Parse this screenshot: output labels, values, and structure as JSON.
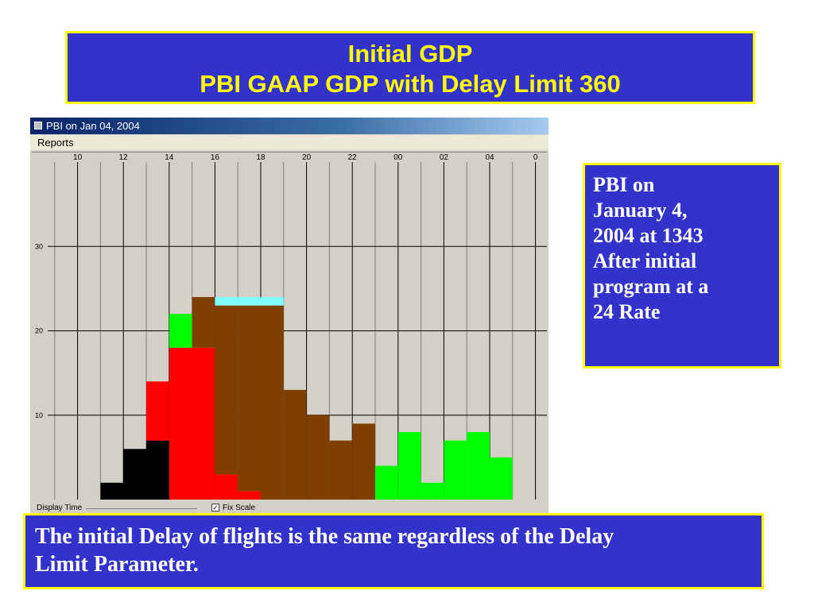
{
  "title": {
    "line1": "Initial GDP",
    "line2": "PBI GAAP GDP with Delay Limit 360"
  },
  "window": {
    "title": "PBI on Jan 04, 2004",
    "menu": "Reports",
    "display_time_label": "Display Time",
    "fix_scale_label": "Fix Scale",
    "fix_scale_checked": true
  },
  "side_note": {
    "lines": [
      "PBI on",
      "January 4,",
      "2004 at 1343",
      "After initial",
      "program at a",
      "24 Rate"
    ]
  },
  "bottom_note": {
    "lines": [
      "The initial Delay of flights is the same regardless of the Delay",
      "Limit Parameter."
    ]
  },
  "chart_data": {
    "type": "bar",
    "stacked": true,
    "x_tick_labels": [
      "10",
      "12",
      "14",
      "16",
      "18",
      "20",
      "22",
      "00",
      "02",
      "04",
      "0"
    ],
    "y_tick_labels": [
      "10",
      "20",
      "30"
    ],
    "ylim": [
      0,
      40
    ],
    "grid": true,
    "colors": {
      "black": "#000000",
      "red": "#ff0000",
      "brown": "#7f3f00",
      "cyan": "#80ffff",
      "green": "#00ff00"
    },
    "bars": [
      {
        "segments": []
      },
      {
        "segments": []
      },
      {
        "segments": []
      },
      {
        "segments": [
          {
            "color": "black",
            "value": 2
          }
        ]
      },
      {
        "segments": [
          {
            "color": "black",
            "value": 6
          }
        ]
      },
      {
        "segments": [
          {
            "color": "black",
            "value": 7
          },
          {
            "color": "red",
            "value": 7
          }
        ]
      },
      {
        "segments": [
          {
            "color": "red",
            "value": 18
          },
          {
            "color": "green",
            "value": 4
          }
        ]
      },
      {
        "segments": [
          {
            "color": "red",
            "value": 18
          },
          {
            "color": "brown",
            "value": 6
          }
        ]
      },
      {
        "segments": [
          {
            "color": "red",
            "value": 3
          },
          {
            "color": "brown",
            "value": 20
          },
          {
            "color": "cyan",
            "value": 1
          }
        ]
      },
      {
        "segments": [
          {
            "color": "red",
            "value": 1
          },
          {
            "color": "brown",
            "value": 22
          },
          {
            "color": "cyan",
            "value": 1
          }
        ]
      },
      {
        "segments": [
          {
            "color": "brown",
            "value": 23
          },
          {
            "color": "cyan",
            "value": 1
          }
        ]
      },
      {
        "segments": [
          {
            "color": "brown",
            "value": 13
          }
        ]
      },
      {
        "segments": [
          {
            "color": "brown",
            "value": 10
          }
        ]
      },
      {
        "segments": [
          {
            "color": "brown",
            "value": 7
          }
        ]
      },
      {
        "segments": [
          {
            "color": "brown",
            "value": 9
          }
        ]
      },
      {
        "segments": [
          {
            "color": "green",
            "value": 4
          }
        ]
      },
      {
        "segments": [
          {
            "color": "green",
            "value": 8
          }
        ]
      },
      {
        "segments": [
          {
            "color": "green",
            "value": 2
          }
        ]
      },
      {
        "segments": [
          {
            "color": "green",
            "value": 7
          }
        ]
      },
      {
        "segments": [
          {
            "color": "green",
            "value": 8
          }
        ]
      },
      {
        "segments": [
          {
            "color": "green",
            "value": 5
          }
        ]
      },
      {
        "segments": []
      }
    ]
  }
}
